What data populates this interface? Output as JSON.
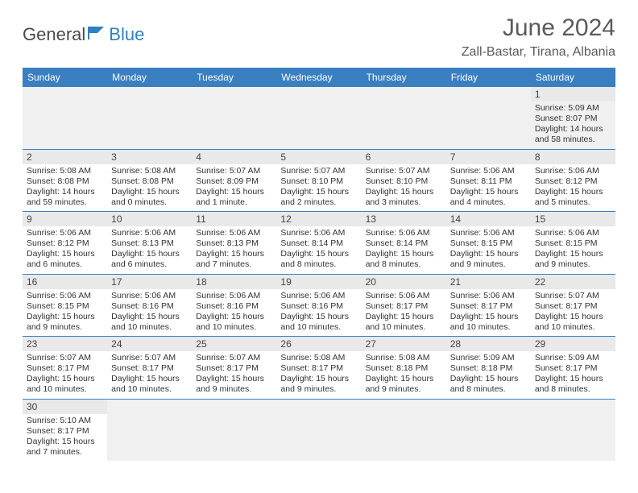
{
  "logo": {
    "left": "General",
    "right": "Blue",
    "flag_color": "#2f7fc2"
  },
  "title": "June 2024",
  "location": "Zall-Bastar, Tirana, Albania",
  "colors": {
    "header_bg": "#3a7fc0",
    "header_fg": "#ffffff",
    "daynum_bg": "#e9e9e9",
    "row_divider": "#3a7fc0"
  },
  "weekdays": [
    "Sunday",
    "Monday",
    "Tuesday",
    "Wednesday",
    "Thursday",
    "Friday",
    "Saturday"
  ],
  "weeks": [
    [
      null,
      null,
      null,
      null,
      null,
      null,
      {
        "d": "1",
        "sr": "Sunrise: 5:09 AM",
        "ss": "Sunset: 8:07 PM",
        "dl": "Daylight: 14 hours and 58 minutes."
      }
    ],
    [
      {
        "d": "2",
        "sr": "Sunrise: 5:08 AM",
        "ss": "Sunset: 8:08 PM",
        "dl": "Daylight: 14 hours and 59 minutes."
      },
      {
        "d": "3",
        "sr": "Sunrise: 5:08 AM",
        "ss": "Sunset: 8:08 PM",
        "dl": "Daylight: 15 hours and 0 minutes."
      },
      {
        "d": "4",
        "sr": "Sunrise: 5:07 AM",
        "ss": "Sunset: 8:09 PM",
        "dl": "Daylight: 15 hours and 1 minute."
      },
      {
        "d": "5",
        "sr": "Sunrise: 5:07 AM",
        "ss": "Sunset: 8:10 PM",
        "dl": "Daylight: 15 hours and 2 minutes."
      },
      {
        "d": "6",
        "sr": "Sunrise: 5:07 AM",
        "ss": "Sunset: 8:10 PM",
        "dl": "Daylight: 15 hours and 3 minutes."
      },
      {
        "d": "7",
        "sr": "Sunrise: 5:06 AM",
        "ss": "Sunset: 8:11 PM",
        "dl": "Daylight: 15 hours and 4 minutes."
      },
      {
        "d": "8",
        "sr": "Sunrise: 5:06 AM",
        "ss": "Sunset: 8:12 PM",
        "dl": "Daylight: 15 hours and 5 minutes."
      }
    ],
    [
      {
        "d": "9",
        "sr": "Sunrise: 5:06 AM",
        "ss": "Sunset: 8:12 PM",
        "dl": "Daylight: 15 hours and 6 minutes."
      },
      {
        "d": "10",
        "sr": "Sunrise: 5:06 AM",
        "ss": "Sunset: 8:13 PM",
        "dl": "Daylight: 15 hours and 6 minutes."
      },
      {
        "d": "11",
        "sr": "Sunrise: 5:06 AM",
        "ss": "Sunset: 8:13 PM",
        "dl": "Daylight: 15 hours and 7 minutes."
      },
      {
        "d": "12",
        "sr": "Sunrise: 5:06 AM",
        "ss": "Sunset: 8:14 PM",
        "dl": "Daylight: 15 hours and 8 minutes."
      },
      {
        "d": "13",
        "sr": "Sunrise: 5:06 AM",
        "ss": "Sunset: 8:14 PM",
        "dl": "Daylight: 15 hours and 8 minutes."
      },
      {
        "d": "14",
        "sr": "Sunrise: 5:06 AM",
        "ss": "Sunset: 8:15 PM",
        "dl": "Daylight: 15 hours and 9 minutes."
      },
      {
        "d": "15",
        "sr": "Sunrise: 5:06 AM",
        "ss": "Sunset: 8:15 PM",
        "dl": "Daylight: 15 hours and 9 minutes."
      }
    ],
    [
      {
        "d": "16",
        "sr": "Sunrise: 5:06 AM",
        "ss": "Sunset: 8:15 PM",
        "dl": "Daylight: 15 hours and 9 minutes."
      },
      {
        "d": "17",
        "sr": "Sunrise: 5:06 AM",
        "ss": "Sunset: 8:16 PM",
        "dl": "Daylight: 15 hours and 10 minutes."
      },
      {
        "d": "18",
        "sr": "Sunrise: 5:06 AM",
        "ss": "Sunset: 8:16 PM",
        "dl": "Daylight: 15 hours and 10 minutes."
      },
      {
        "d": "19",
        "sr": "Sunrise: 5:06 AM",
        "ss": "Sunset: 8:16 PM",
        "dl": "Daylight: 15 hours and 10 minutes."
      },
      {
        "d": "20",
        "sr": "Sunrise: 5:06 AM",
        "ss": "Sunset: 8:17 PM",
        "dl": "Daylight: 15 hours and 10 minutes."
      },
      {
        "d": "21",
        "sr": "Sunrise: 5:06 AM",
        "ss": "Sunset: 8:17 PM",
        "dl": "Daylight: 15 hours and 10 minutes."
      },
      {
        "d": "22",
        "sr": "Sunrise: 5:07 AM",
        "ss": "Sunset: 8:17 PM",
        "dl": "Daylight: 15 hours and 10 minutes."
      }
    ],
    [
      {
        "d": "23",
        "sr": "Sunrise: 5:07 AM",
        "ss": "Sunset: 8:17 PM",
        "dl": "Daylight: 15 hours and 10 minutes."
      },
      {
        "d": "24",
        "sr": "Sunrise: 5:07 AM",
        "ss": "Sunset: 8:17 PM",
        "dl": "Daylight: 15 hours and 10 minutes."
      },
      {
        "d": "25",
        "sr": "Sunrise: 5:07 AM",
        "ss": "Sunset: 8:17 PM",
        "dl": "Daylight: 15 hours and 9 minutes."
      },
      {
        "d": "26",
        "sr": "Sunrise: 5:08 AM",
        "ss": "Sunset: 8:17 PM",
        "dl": "Daylight: 15 hours and 9 minutes."
      },
      {
        "d": "27",
        "sr": "Sunrise: 5:08 AM",
        "ss": "Sunset: 8:18 PM",
        "dl": "Daylight: 15 hours and 9 minutes."
      },
      {
        "d": "28",
        "sr": "Sunrise: 5:09 AM",
        "ss": "Sunset: 8:18 PM",
        "dl": "Daylight: 15 hours and 8 minutes."
      },
      {
        "d": "29",
        "sr": "Sunrise: 5:09 AM",
        "ss": "Sunset: 8:17 PM",
        "dl": "Daylight: 15 hours and 8 minutes."
      }
    ],
    [
      {
        "d": "30",
        "sr": "Sunrise: 5:10 AM",
        "ss": "Sunset: 8:17 PM",
        "dl": "Daylight: 15 hours and 7 minutes."
      },
      null,
      null,
      null,
      null,
      null,
      null
    ]
  ]
}
